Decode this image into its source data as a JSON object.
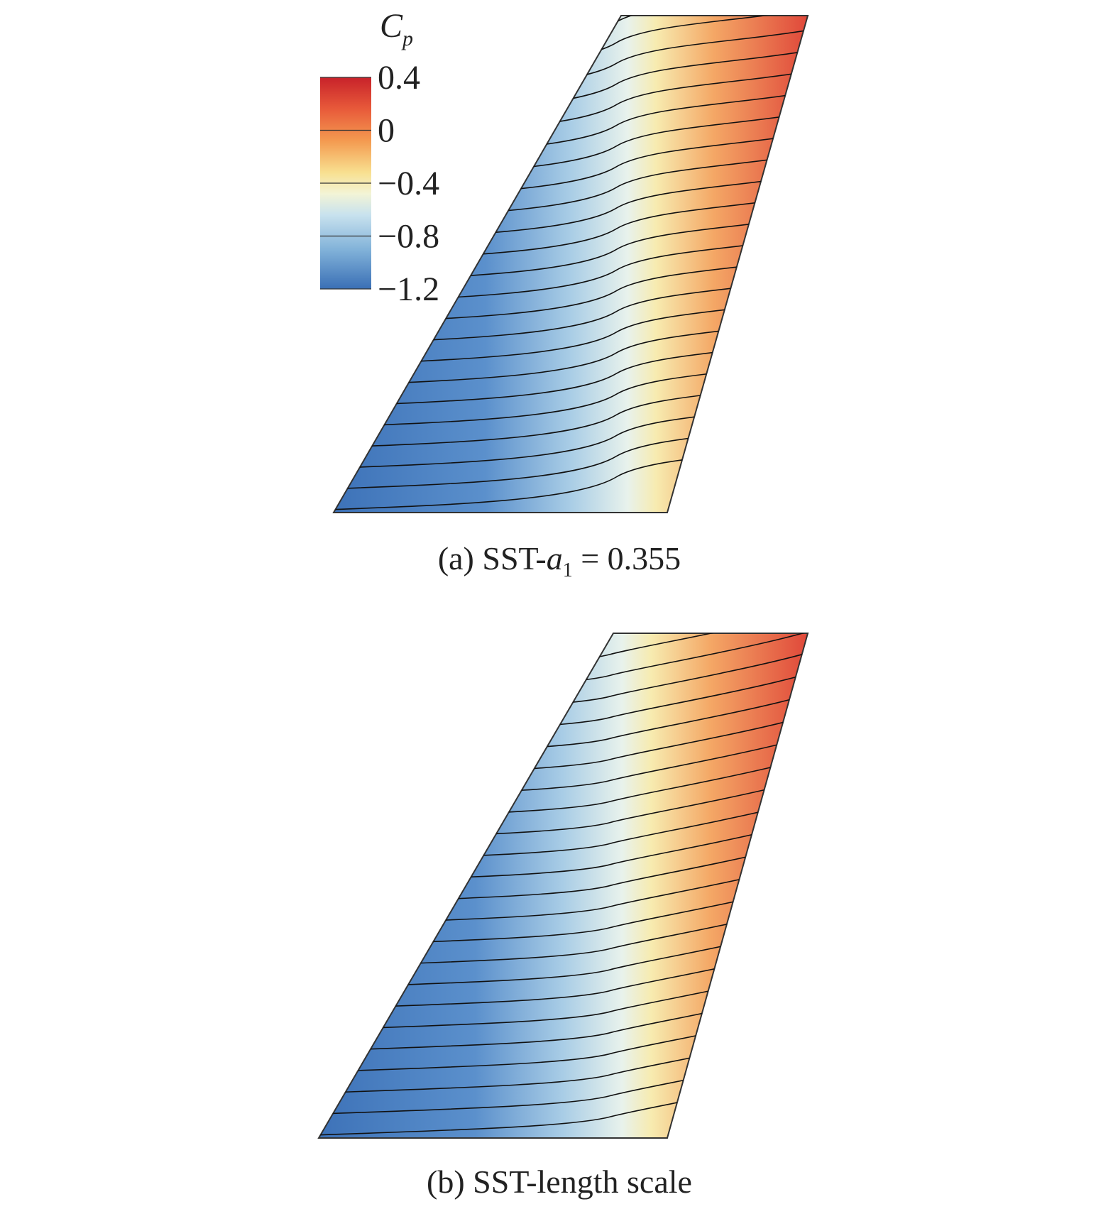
{
  "figure": {
    "colorbar": {
      "title": "C",
      "title_subscript": "p",
      "range": [
        -1.2,
        0.4
      ],
      "ticks": [
        0.4,
        0,
        {
          "value": -0.4,
          "label": "−0.4"
        },
        {
          "value": -0.8,
          "label": "−0.8"
        },
        {
          "value": -1.2,
          "label": "−1.2"
        }
      ]
    },
    "panels": [
      {
        "caption": {
          "prefix": "(a) SST-",
          "variable": "a",
          "subscript": "1",
          "suffix": " = 0.355"
        }
      },
      {
        "caption": {
          "text": "(b) SST-length scale"
        }
      }
    ]
  }
}
